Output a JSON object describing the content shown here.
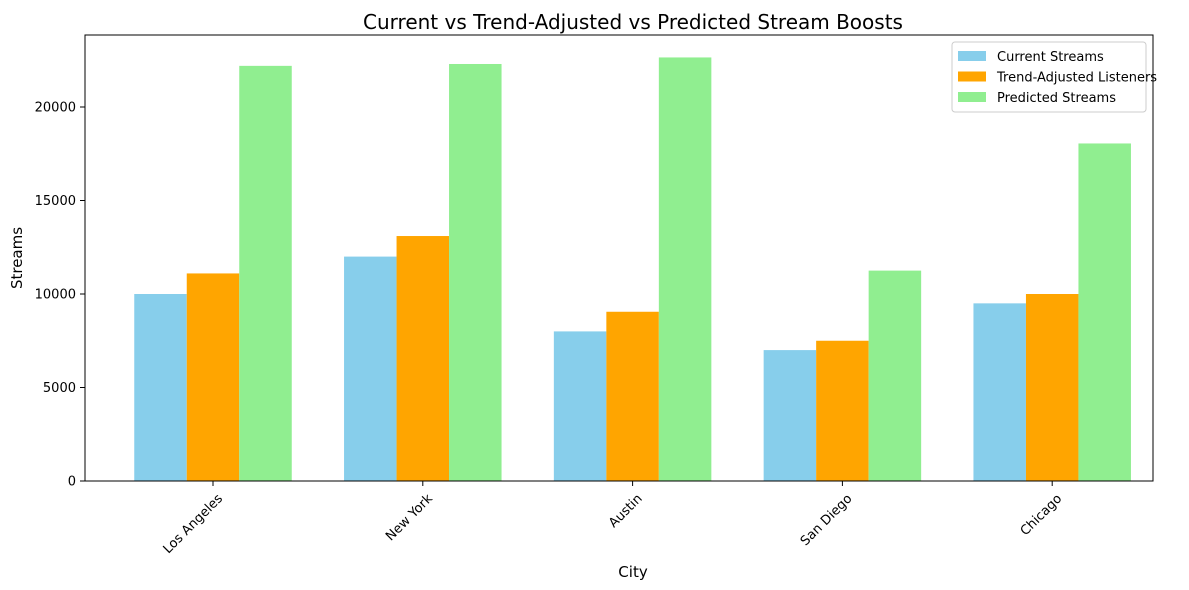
{
  "chart_data": {
    "type": "bar",
    "title": "Current vs Trend-Adjusted vs Predicted Stream Boosts",
    "xlabel": "City",
    "ylabel": "Streams",
    "categories": [
      "Los Angeles",
      "New York",
      "Austin",
      "San Diego",
      "Chicago"
    ],
    "series": [
      {
        "name": "Current Streams",
        "color": "#87CEEB",
        "values": [
          10000,
          12000,
          8000,
          7000,
          9500
        ]
      },
      {
        "name": "Trend-Adjusted Listeners",
        "color": "#FFA500",
        "values": [
          11100,
          13100,
          9050,
          7500,
          10000
        ]
      },
      {
        "name": "Predicted Streams",
        "color": "#90EE90",
        "values": [
          22200,
          22300,
          22650,
          11250,
          18050
        ]
      }
    ],
    "yticks": [
      0,
      5000,
      10000,
      15000,
      20000
    ],
    "ylim": [
      0,
      23850
    ],
    "grid": false,
    "legend": "top-right",
    "xtick_rotation": 45
  }
}
